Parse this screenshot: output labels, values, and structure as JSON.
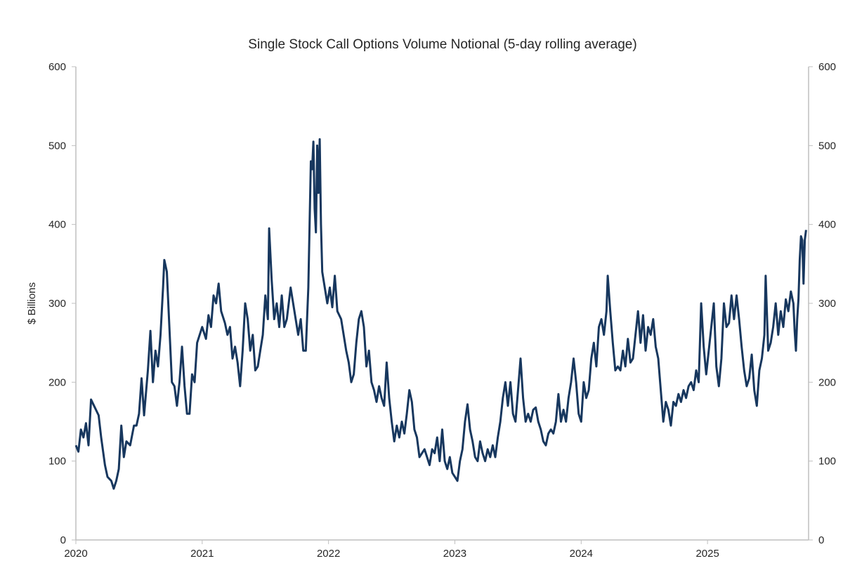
{
  "chart_data": {
    "type": "line",
    "title": "Single Stock Call Options Volume Notional (5-day rolling average)",
    "xlabel": "",
    "ylabel": "$ Billions",
    "xlim": [
      2020,
      2025.8
    ],
    "ylim": [
      0,
      600
    ],
    "y_ticks": [
      0,
      100,
      200,
      300,
      400,
      500,
      600
    ],
    "y_tick_labels": [
      "0",
      "100",
      "200",
      "300",
      "400",
      "500",
      "600"
    ],
    "y2_tick_labels": [
      "0",
      "100",
      "200",
      "300",
      "400",
      "500",
      "600"
    ],
    "x_ticks": [
      2020,
      2021,
      2022,
      2023,
      2024,
      2025
    ],
    "x_tick_labels": [
      "2020",
      "2021",
      "2022",
      "2023",
      "2024",
      "2025"
    ],
    "grid": false,
    "legend": "none",
    "colors": {
      "line": "#17375e",
      "axis": "#bfbfbf",
      "text": "#262626"
    },
    "series": [
      {
        "name": "Single Stock Call Options Volume Notional",
        "x": [
          2020.0,
          2020.02,
          2020.04,
          2020.06,
          2020.08,
          2020.1,
          2020.12,
          2020.15,
          2020.18,
          2020.2,
          2020.23,
          2020.25,
          2020.28,
          2020.3,
          2020.32,
          2020.34,
          2020.36,
          2020.38,
          2020.4,
          2020.43,
          2020.46,
          2020.48,
          2020.5,
          2020.52,
          2020.54,
          2020.57,
          2020.59,
          2020.61,
          2020.63,
          2020.65,
          2020.67,
          2020.69,
          2020.7,
          2020.72,
          2020.74,
          2020.76,
          2020.78,
          2020.8,
          2020.82,
          2020.84,
          2020.86,
          2020.88,
          2020.9,
          2020.92,
          2020.94,
          2020.96,
          2021.0,
          2021.03,
          2021.05,
          2021.07,
          2021.09,
          2021.11,
          2021.13,
          2021.15,
          2021.18,
          2021.2,
          2021.22,
          2021.24,
          2021.26,
          2021.28,
          2021.3,
          2021.32,
          2021.34,
          2021.36,
          2021.38,
          2021.4,
          2021.42,
          2021.44,
          2021.46,
          2021.48,
          2021.5,
          2021.52,
          2021.53,
          2021.55,
          2021.57,
          2021.59,
          2021.61,
          2021.63,
          2021.65,
          2021.67,
          2021.7,
          2021.72,
          2021.74,
          2021.76,
          2021.78,
          2021.8,
          2021.82,
          2021.84,
          2021.85,
          2021.86,
          2021.87,
          2021.88,
          2021.89,
          2021.9,
          2021.91,
          2021.92,
          2021.93,
          2021.94,
          2021.95,
          2021.97,
          2021.99,
          2022.01,
          2022.03,
          2022.05,
          2022.07,
          2022.1,
          2022.12,
          2022.14,
          2022.16,
          2022.18,
          2022.2,
          2022.22,
          2022.24,
          2022.26,
          2022.28,
          2022.3,
          2022.32,
          2022.34,
          2022.36,
          2022.38,
          2022.4,
          2022.42,
          2022.44,
          2022.46,
          2022.48,
          2022.5,
          2022.52,
          2022.54,
          2022.56,
          2022.58,
          2022.6,
          2022.62,
          2022.64,
          2022.66,
          2022.68,
          2022.7,
          2022.72,
          2022.74,
          2022.76,
          2022.78,
          2022.8,
          2022.82,
          2022.84,
          2022.86,
          2022.88,
          2022.9,
          2022.92,
          2022.94,
          2022.96,
          2022.98,
          2023.0,
          2023.02,
          2023.04,
          2023.06,
          2023.08,
          2023.1,
          2023.12,
          2023.14,
          2023.16,
          2023.18,
          2023.2,
          2023.22,
          2023.24,
          2023.26,
          2023.28,
          2023.3,
          2023.32,
          2023.34,
          2023.36,
          2023.38,
          2023.4,
          2023.42,
          2023.44,
          2023.46,
          2023.48,
          2023.5,
          2023.52,
          2023.54,
          2023.56,
          2023.58,
          2023.6,
          2023.62,
          2023.64,
          2023.66,
          2023.68,
          2023.7,
          2023.72,
          2023.74,
          2023.76,
          2023.78,
          2023.8,
          2023.82,
          2023.84,
          2023.86,
          2023.88,
          2023.9,
          2023.92,
          2023.94,
          2023.96,
          2023.98,
          2024.0,
          2024.02,
          2024.04,
          2024.06,
          2024.08,
          2024.1,
          2024.12,
          2024.14,
          2024.16,
          2024.18,
          2024.2,
          2024.21,
          2024.23,
          2024.25,
          2024.27,
          2024.29,
          2024.31,
          2024.33,
          2024.35,
          2024.37,
          2024.39,
          2024.41,
          2024.43,
          2024.45,
          2024.47,
          2024.49,
          2024.51,
          2024.53,
          2024.55,
          2024.57,
          2024.59,
          2024.61,
          2024.63,
          2024.65,
          2024.67,
          2024.69,
          2024.71,
          2024.73,
          2024.75,
          2024.77,
          2024.79,
          2024.81,
          2024.83,
          2024.85,
          2024.87,
          2024.89,
          2024.91,
          2024.93,
          2024.95,
          2024.97,
          2024.99,
          2025.01,
          2025.03,
          2025.05,
          2025.07,
          2025.09,
          2025.11,
          2025.13,
          2025.15,
          2025.17,
          2025.19,
          2025.21,
          2025.23,
          2025.25,
          2025.27,
          2025.29,
          2025.31,
          2025.33,
          2025.35,
          2025.37,
          2025.39,
          2025.41,
          2025.43,
          2025.45,
          2025.46,
          2025.48,
          2025.5,
          2025.52,
          2025.54,
          2025.56,
          2025.58,
          2025.6,
          2025.62,
          2025.64,
          2025.66,
          2025.68,
          2025.69,
          2025.7,
          2025.71,
          2025.72,
          2025.73,
          2025.74,
          2025.75,
          2025.76,
          2025.77,
          2025.78
        ],
        "values": [
          120,
          112,
          140,
          130,
          148,
          120,
          178,
          168,
          158,
          130,
          95,
          80,
          75,
          65,
          75,
          90,
          145,
          105,
          125,
          120,
          145,
          145,
          160,
          205,
          158,
          215,
          265,
          200,
          240,
          220,
          260,
          320,
          355,
          340,
          270,
          200,
          195,
          170,
          200,
          245,
          195,
          160,
          160,
          210,
          200,
          250,
          270,
          255,
          285,
          270,
          310,
          300,
          325,
          290,
          275,
          260,
          270,
          230,
          245,
          225,
          195,
          240,
          300,
          280,
          240,
          260,
          215,
          220,
          240,
          260,
          310,
          280,
          395,
          330,
          280,
          300,
          270,
          310,
          270,
          280,
          320,
          300,
          280,
          260,
          280,
          240,
          240,
          320,
          400,
          480,
          470,
          505,
          420,
          390,
          500,
          440,
          508,
          400,
          340,
          320,
          300,
          320,
          295,
          335,
          290,
          280,
          260,
          240,
          225,
          200,
          210,
          250,
          280,
          290,
          270,
          220,
          240,
          200,
          190,
          175,
          195,
          180,
          170,
          225,
          180,
          150,
          125,
          145,
          130,
          150,
          135,
          160,
          190,
          175,
          140,
          130,
          105,
          110,
          115,
          105,
          95,
          115,
          110,
          130,
          100,
          140,
          100,
          90,
          105,
          85,
          80,
          75,
          100,
          115,
          150,
          172,
          140,
          125,
          105,
          100,
          125,
          110,
          100,
          115,
          105,
          120,
          105,
          130,
          150,
          180,
          200,
          170,
          200,
          160,
          150,
          190,
          230,
          180,
          150,
          160,
          150,
          165,
          168,
          150,
          140,
          125,
          120,
          135,
          140,
          135,
          150,
          185,
          150,
          165,
          150,
          180,
          200,
          230,
          200,
          160,
          150,
          200,
          180,
          190,
          230,
          250,
          220,
          270,
          280,
          260,
          290,
          335,
          290,
          250,
          215,
          220,
          215,
          240,
          220,
          255,
          225,
          230,
          260,
          290,
          250,
          285,
          240,
          270,
          260,
          280,
          245,
          230,
          190,
          150,
          175,
          165,
          145,
          175,
          170,
          185,
          175,
          190,
          180,
          195,
          200,
          190,
          215,
          200,
          300,
          245,
          210,
          240,
          270,
          300,
          220,
          195,
          230,
          300,
          270,
          275,
          310,
          280,
          310,
          280,
          245,
          215,
          195,
          205,
          235,
          190,
          170,
          215,
          230,
          260,
          335,
          240,
          250,
          270,
          300,
          260,
          290,
          270,
          305,
          290,
          315,
          300,
          265,
          240,
          280,
          305,
          355,
          385,
          380,
          325,
          380,
          393
        ]
      }
    ]
  }
}
